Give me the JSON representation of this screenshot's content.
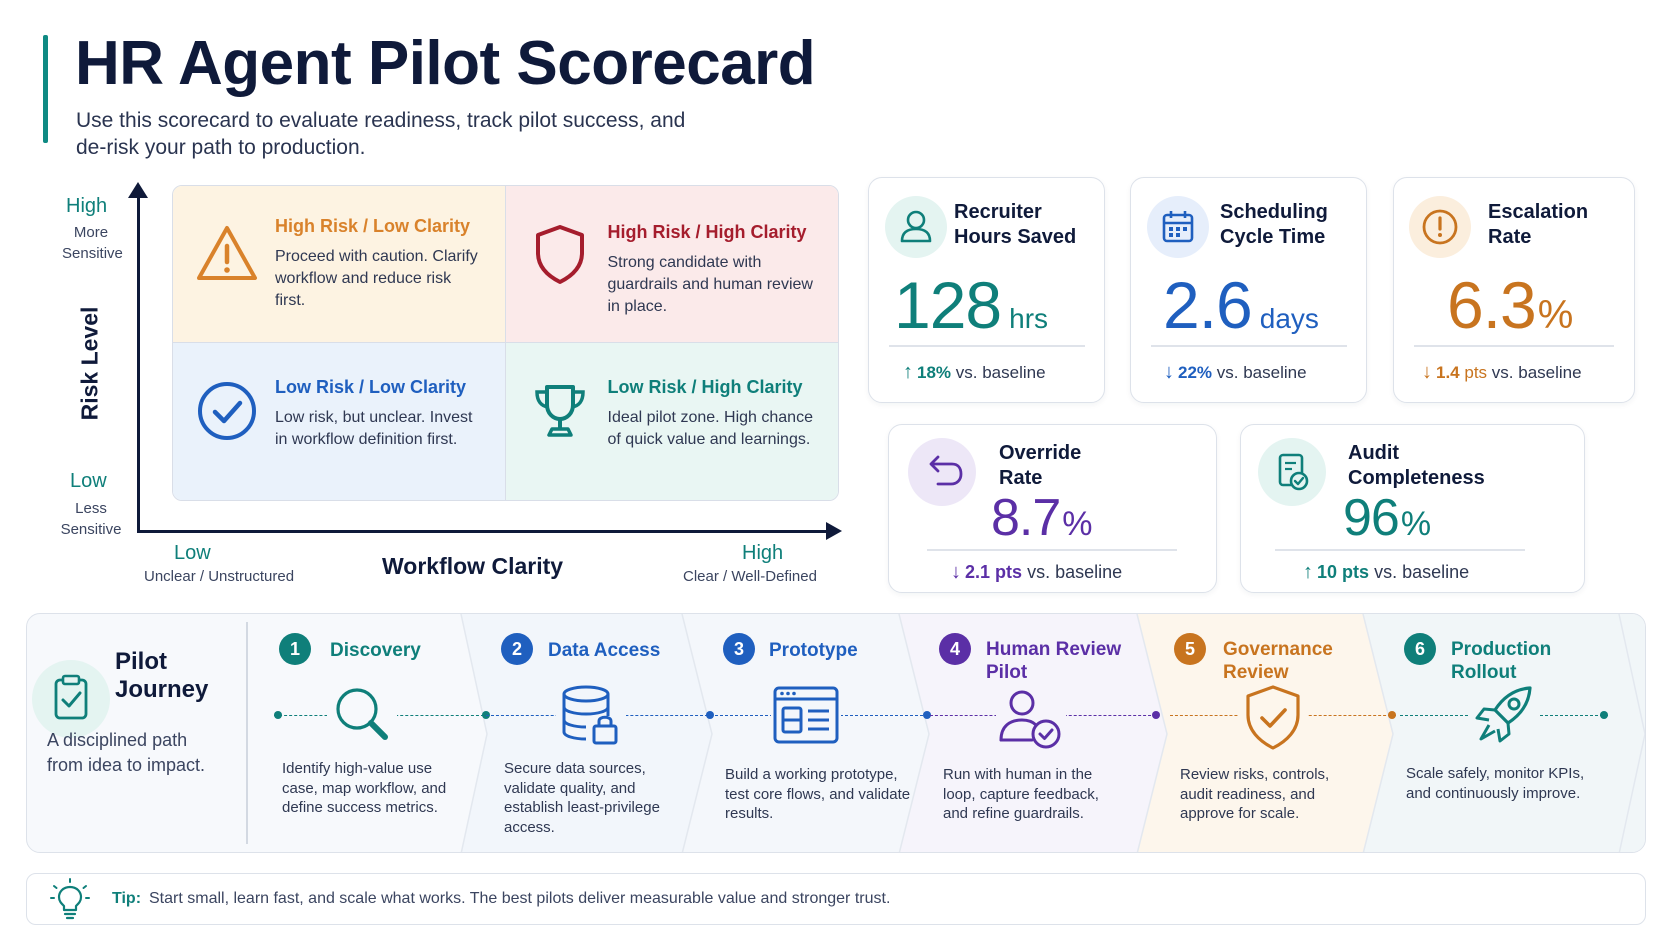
{
  "header": {
    "title": "HR Agent Pilot Scorecard",
    "subtitle": "Use this scorecard to evaluate readiness, track pilot success, and de-risk your path to production."
  },
  "matrix": {
    "y_axis": {
      "title": "Risk Level",
      "high": "High",
      "high_sub": "More Sensitive",
      "low": "Low",
      "low_sub": "Less Sensitive"
    },
    "x_axis": {
      "title": "Workflow Clarity",
      "low": "Low",
      "low_sub": "Unclear / Unstructured",
      "high": "High",
      "high_sub": "Clear / Well-Defined"
    },
    "quadrants": {
      "top_left": {
        "title": "High Risk / Low Clarity",
        "text": "Proceed with caution. Clarify workflow and reduce risk first.",
        "icon": "warning-icon",
        "color": "#d9822b"
      },
      "top_right": {
        "title": "High Risk / High Clarity",
        "text": "Strong candidate with guardrails and human review in place.",
        "icon": "shield-icon",
        "color": "#a51d2d"
      },
      "bottom_left": {
        "title": "Low Risk / Low Clarity",
        "text": "Low risk, but unclear. Invest in workflow definition first.",
        "icon": "check-circle-icon",
        "color": "#1f5fbf"
      },
      "bottom_right": {
        "title": "Low Risk / High Clarity",
        "text": "Ideal pilot zone. High chance of quick value and learnings.",
        "icon": "trophy-icon",
        "color": "#0f7f7a"
      }
    }
  },
  "metrics": [
    {
      "label_1": "Recruiter",
      "label_2": "Hours Saved",
      "value": "128",
      "unit": "hrs",
      "delta_arrow": "↑",
      "delta_value": "18%",
      "delta_unit": "",
      "delta_suffix": "vs. baseline",
      "icon": "user-icon",
      "color": "#0f7f7a"
    },
    {
      "label_1": "Scheduling",
      "label_2": "Cycle Time",
      "value": "2.6",
      "unit": "days",
      "delta_arrow": "↓",
      "delta_value": "22%",
      "delta_unit": "",
      "delta_suffix": "vs. baseline",
      "icon": "calendar-icon",
      "color": "#1f5fbf"
    },
    {
      "label_1": "Escalation",
      "label_2": "Rate",
      "value": "6.3",
      "unit": "%",
      "delta_arrow": "↓",
      "delta_value": "1.4",
      "delta_unit": "pts",
      "delta_suffix": "vs. baseline",
      "icon": "alert-circle-icon",
      "color": "#c8741f"
    },
    {
      "label_1": "Override",
      "label_2": "Rate",
      "value": "8.7",
      "unit": "%",
      "delta_arrow": "↓",
      "delta_value": "2.1",
      "delta_unit": "pts",
      "delta_suffix": "vs. baseline",
      "icon": "undo-icon",
      "color": "#5b2fa6"
    },
    {
      "label_1": "Audit",
      "label_2": "Completeness",
      "value": "96",
      "unit": "%",
      "delta_arrow": "↑",
      "delta_value": "10",
      "delta_unit": "pts",
      "delta_suffix": "vs. baseline",
      "icon": "audit-check-icon",
      "color": "#0f7f7a"
    }
  ],
  "journey": {
    "title_1": "Pilot",
    "title_2": "Journey",
    "subtitle": "A disciplined path from idea to impact.",
    "steps": [
      {
        "number": "1",
        "title_1": "Discovery",
        "title_2": "",
        "text": "Identify high-value use case, map workflow, and define success metrics.",
        "icon": "magnifier-icon",
        "color": "#0f7f7a"
      },
      {
        "number": "2",
        "title_1": "Data Access",
        "title_2": "",
        "text": "Secure data sources, validate quality, and establish least-privilege access.",
        "icon": "database-lock-icon",
        "color": "#1f5fbf"
      },
      {
        "number": "3",
        "title_1": "Prototype",
        "title_2": "",
        "text": "Build a working prototype, test core flows, and validate results.",
        "icon": "prototype-window-icon",
        "color": "#1f5fbf"
      },
      {
        "number": "4",
        "title_1": "Human Review",
        "title_2": "Pilot",
        "text": "Run with human in the loop, capture feedback, and refine guardrails.",
        "icon": "user-check-icon",
        "color": "#5b2fa6"
      },
      {
        "number": "5",
        "title_1": "Governance",
        "title_2": "Review",
        "text": "Review risks, controls, audit readiness, and approve for scale.",
        "icon": "shield-check-icon",
        "color": "#c8741f"
      },
      {
        "number": "6",
        "title_1": "Production",
        "title_2": "Rollout",
        "text": "Scale safely, monitor KPIs, and continuously improve.",
        "icon": "rocket-icon",
        "color": "#0f7f7a"
      }
    ]
  },
  "tip": {
    "label": "Tip:",
    "text": "Start small, learn fast, and scale what works. The best pilots deliver measurable value and stronger trust."
  }
}
